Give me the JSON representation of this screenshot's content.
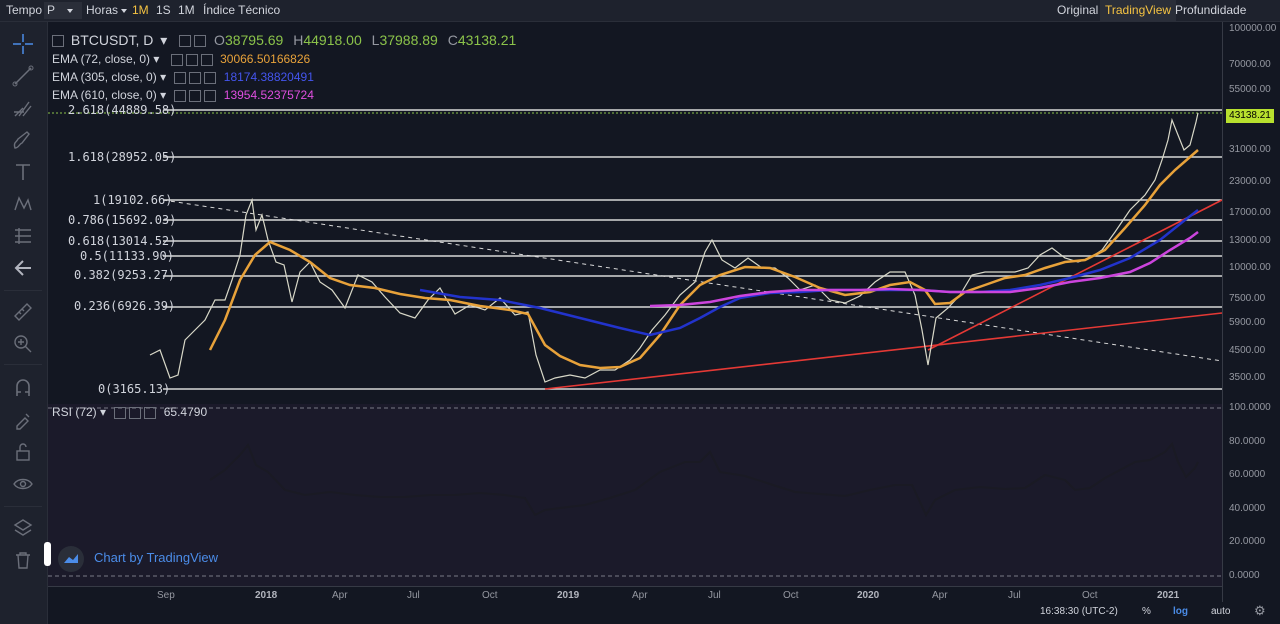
{
  "toolbar": {
    "tempo": "Tempo",
    "period": "P",
    "horas": "Horas",
    "interval_1m": "1M",
    "interval_1s": "1S",
    "interval_1M": "1M",
    "indicator": "Índice Técnico",
    "view_original": "Original",
    "view_tradingview": "TradingView",
    "view_profundidade": "Profundidade"
  },
  "legend": {
    "symbol": "BTCUSDT, D",
    "open_label": "O",
    "open": "38795.69",
    "high_label": "H",
    "high": "44918.00",
    "low_label": "L",
    "low": "37988.89",
    "close_label": "C",
    "close": "43138.21",
    "ema72_label": "EMA (72, close, 0)",
    "ema72_value": "30066.50166826",
    "ema305_label": "EMA (305, close, 0)",
    "ema305_value": "18174.38820491",
    "ema610_label": "EMA (610, close, 0)",
    "ema610_value": "13954.52375724",
    "rsi_label": "RSI (72)",
    "rsi_value": "65.4790"
  },
  "fib_levels": [
    "2.618(44889.58)",
    "1.618(28952.05)",
    "1(19102.66)",
    "0.786(15692.03)",
    "0.618(13014.52)",
    "0.5(11133.90)",
    "0.382(9253.27)",
    "0.236(6926.39)",
    "0(3165.13)"
  ],
  "price_axis": [
    "100000.00",
    "70000.00",
    "55000.00",
    "43000.00",
    "31000.00",
    "23000.00",
    "17000.00",
    "13000.00",
    "10000.00",
    "7500.00",
    "5900.00",
    "4500.00",
    "3500.00"
  ],
  "current_price": "43138.21",
  "rsi_axis": [
    "100.0000",
    "80.0000",
    "60.0000",
    "40.0000",
    "20.0000",
    "0.0000"
  ],
  "time_axis": [
    "Sep",
    "2018",
    "Apr",
    "Jul",
    "Oct",
    "2019",
    "Apr",
    "Jul",
    "Oct",
    "2020",
    "Apr",
    "Jul",
    "Oct",
    "2021"
  ],
  "watermark": "Chart by TradingView",
  "bottom": {
    "time": "16:38:30 (UTC-2)",
    "percent": "%",
    "log": "log",
    "auto": "auto"
  },
  "colors": {
    "ema72": "#e8a23a",
    "ema305": "#2233cc",
    "ema610": "#cc44dd",
    "trendline": "#e53935",
    "price_line": "#d8d8c8",
    "rsi_line": "#1a1a24",
    "accent": "#f5c342",
    "green": "#b8e02e"
  },
  "chart_data": {
    "type": "line",
    "title": "BTCUSDT, D",
    "log_scale": true,
    "ylim": [
      3000,
      100000
    ],
    "series": [
      {
        "name": "EMA (72, close, 0)",
        "last": 30066.50166826
      },
      {
        "name": "EMA (305, close, 0)",
        "last": 18174.38820491
      },
      {
        "name": "EMA (610, close, 0)",
        "last": 13954.52375724
      },
      {
        "name": "RSI (72)",
        "last": 65.479
      }
    ]
  }
}
